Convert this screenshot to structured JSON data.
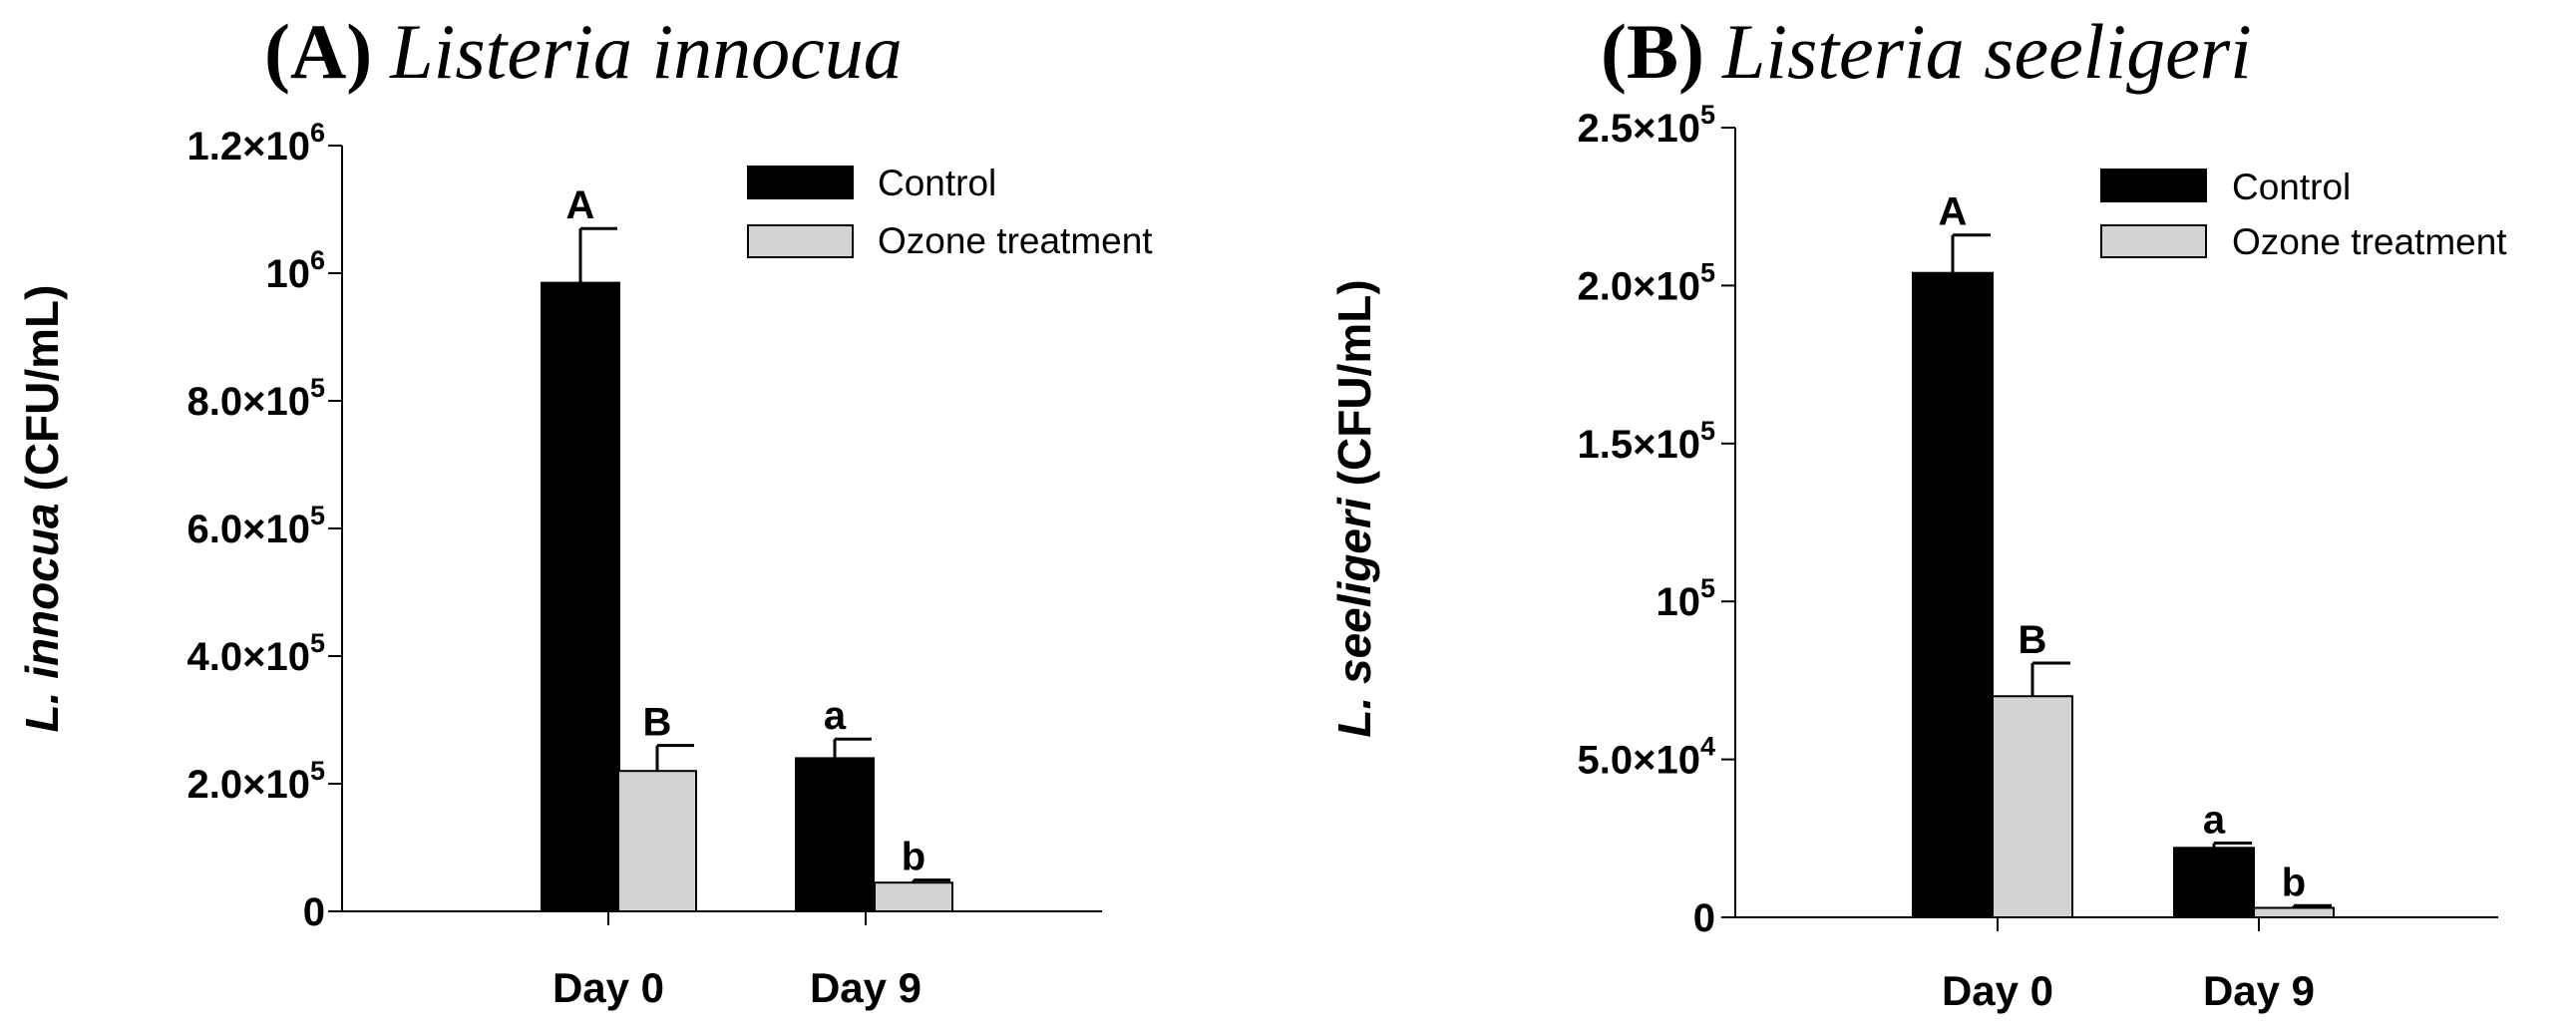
{
  "chart_data": [
    {
      "type": "bar",
      "title_letter": "(A)",
      "title_species": "Listeria innocua",
      "ylabel_italic": "L. innocua",
      "ylabel_unit": "(CFU/mL)",
      "xlabel": "",
      "categories": [
        "Day 0",
        "Day 9"
      ],
      "series": [
        {
          "name": "Control",
          "color": "#000000",
          "values": [
            985000,
            240000
          ],
          "errors": [
            85000,
            30000
          ],
          "labels": [
            "A",
            "a"
          ]
        },
        {
          "name": "Ozone treatment",
          "color": "#d3d3d3",
          "values": [
            220000,
            45000
          ],
          "errors": [
            40000,
            4000
          ],
          "labels": [
            "B",
            "b"
          ]
        }
      ],
      "ylim": [
        0,
        1200000
      ],
      "yticks": [
        {
          "value": 0,
          "main": "0",
          "sup": ""
        },
        {
          "value": 200000,
          "main": "2.0×10",
          "sup": "5"
        },
        {
          "value": 400000,
          "main": "4.0×10",
          "sup": "5"
        },
        {
          "value": 600000,
          "main": "6.0×10",
          "sup": "5"
        },
        {
          "value": 800000,
          "main": "8.0×10",
          "sup": "5"
        },
        {
          "value": 1000000,
          "main": "10",
          "sup": "6"
        },
        {
          "value": 1200000,
          "main": "1.2×10",
          "sup": "6"
        }
      ],
      "legend": "top-right"
    },
    {
      "type": "bar",
      "title_letter": "(B)",
      "title_species": "Listeria seeligeri",
      "ylabel_italic": "L. seeligeri",
      "ylabel_unit": "(CFU/mL)",
      "xlabel": "",
      "categories": [
        "Day 0",
        "Day 9"
      ],
      "series": [
        {
          "name": "Control",
          "color": "#000000",
          "values": [
            204000,
            22000
          ],
          "errors": [
            12000,
            1500
          ],
          "labels": [
            "A",
            "a"
          ]
        },
        {
          "name": "Ozone treatment",
          "color": "#d3d3d3",
          "values": [
            70000,
            3000
          ],
          "errors": [
            10500,
            700
          ],
          "labels": [
            "B",
            "b"
          ]
        }
      ],
      "ylim": [
        0,
        250000
      ],
      "yticks": [
        {
          "value": 0,
          "main": "0",
          "sup": ""
        },
        {
          "value": 50000,
          "main": "5.0×10",
          "sup": "4"
        },
        {
          "value": 100000,
          "main": "10",
          "sup": "5"
        },
        {
          "value": 150000,
          "main": "1.5×10",
          "sup": "5"
        },
        {
          "value": 200000,
          "main": "2.0×10",
          "sup": "5"
        },
        {
          "value": 250000,
          "main": "2.5×10",
          "sup": "5"
        }
      ],
      "legend": "top-right"
    }
  ]
}
